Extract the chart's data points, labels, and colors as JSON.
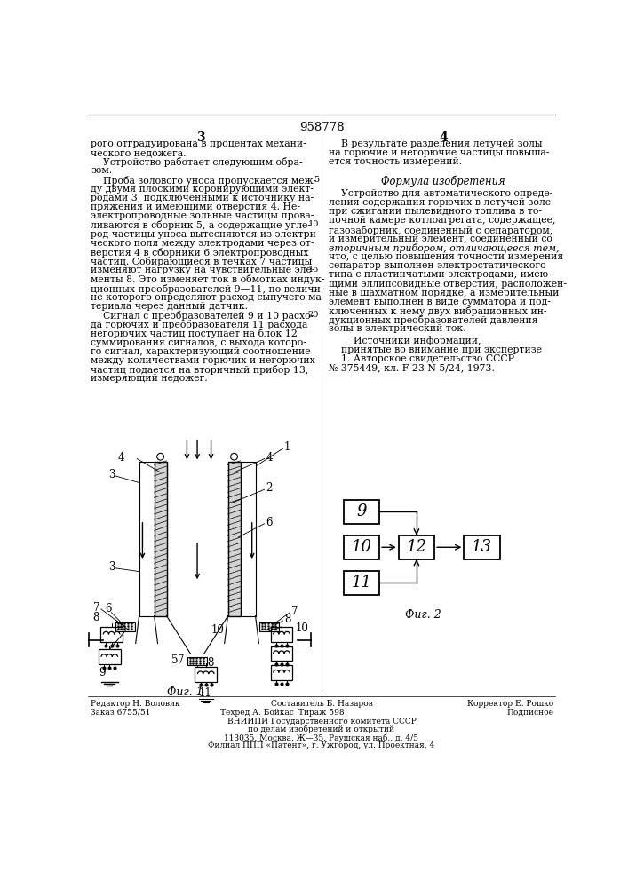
{
  "patent_number": "958778",
  "col_left_num": "3",
  "col_right_num": "4",
  "background_color": "#ffffff",
  "text_color": "#000000",
  "col_left_text": [
    "рого отградуирована в процентах механи-",
    "ческого недожега.",
    "    Устройство работает следующим обра-",
    "зом.",
    "    Проба золового уноса пропускается меж-",
    "ду двумя плоскими коронирующими элект-",
    "родами 3, подключенными к источнику на-",
    "пряжения и имеющими отверстия 4. Не-",
    "электропроводные зольные частицы прова-",
    "ливаются в сборник 5, а содержащие угле-",
    "род частицы уноса вытесняются из электри-",
    "ческого поля между электродами через от-",
    "верстия 4 в сборники 6 электропроводных",
    "частиц. Собирающиеся в течках 7 частицы",
    "изменяют нагрузку на чувствительные эле-",
    "менты 8. Это изменяет ток в обмотках индук-",
    "ционных преобразователей 9—11, по величи-",
    "не которого определяют расход сыпучего ма-",
    "териала через данный датчик.",
    "    Сигнал с преобразователей 9 и 10 расхо-",
    "да горючих и преобразователя 11 расхода",
    "негорючих частиц поступает на блок 12",
    "суммирования сигналов, с выхода которо-",
    "го сигнал, характеризующий соотношение",
    "между количествами горючих и негорючих",
    "частиц подается на вторичный прибор 13,",
    "измеряющий недожег."
  ],
  "col_right_text_top": [
    "    В результате разделения летучей золы",
    "на горючие и негорючие частицы повыша-",
    "ется точность измерений."
  ],
  "formula_title": "Формула изобретения",
  "col_right_formula_normal": [
    "    Устройство для автоматического опреде-",
    "ления содержания горючих в летучей золе",
    "при сжигании пылевидного топлива в то-",
    "почной камере котлоагрегата, содержащее,",
    "газозаборник, соединенный с сепаратором,",
    "и измерительный элемент, соединенный со"
  ],
  "col_right_formula_italic": [
    "вторичным прибором, отличающееся тем,"
  ],
  "col_right_formula_normal2": [
    "что, с целью повышения точности измерения",
    "сепаратор выполнен электростатического",
    "типа с пластинчатыми электродами, имею-",
    "щими эллипсовидные отверстия, расположен-",
    "ные в шахматном порядке, а измерительный",
    "элемент выполнен в виде сумматора и под-",
    "ключенных к нему двух вибрационных ин-",
    "дукционных преобразователей давления",
    "золы в электрический ток."
  ],
  "sources_title": "        Источники информации,",
  "sources_text": [
    "    принятые во внимание при экспертизе",
    "    1. Авторское свидетельство СССР",
    "№ 375449, кл. F 23 N 5/24, 1973."
  ],
  "footer_left": "Редактор Н. Воловик",
  "footer_center_top": "Составитель Б. Назаров",
  "footer_right": "Корректор Е. Рошко",
  "footer_left2": "Заказ 6755/51",
  "footer_center2": "Техред А. Бойкас",
  "footer_center3": "Тираж 598",
  "footer_right2": "Подписное",
  "vniiipi_line1": "ВНИИПИ Государственного комитета СССР",
  "vniiipi_line2": "по делам изобретений и открытий",
  "vniiipi_line3": "113035, Москва, Ж—35, Раушская наб., д. 4/5",
  "vniiipi_line4": "Филиал ППП «Патент», г. Ужгород, ул. Проектная, 4"
}
